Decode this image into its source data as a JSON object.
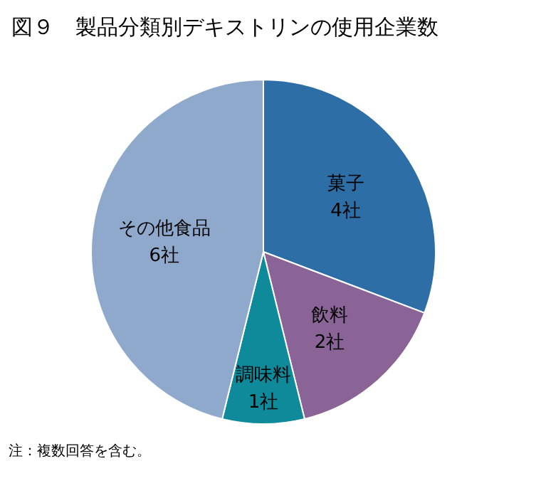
{
  "chart_data": {
    "type": "pie",
    "title": "図９　製品分類別デキストリンの使用企業数",
    "categories": [
      "菓子",
      "飲料",
      "調味料",
      "その他食品"
    ],
    "values": [
      4,
      2,
      1,
      6
    ],
    "value_labels": [
      "4社",
      "2社",
      "1社",
      "6社"
    ],
    "colors": [
      "#2e6ea6",
      "#8a6496",
      "#0e8a9a",
      "#8fa9cc"
    ],
    "annotations": [
      "注：複数回答を含む。"
    ]
  }
}
